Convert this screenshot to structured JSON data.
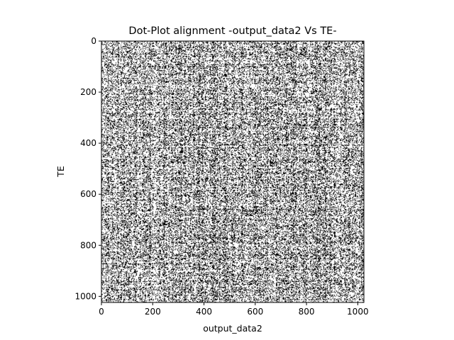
{
  "chart_data": {
    "type": "heatmap",
    "title": "Dot-Plot alignment -output_data2 Vs TE-",
    "xlabel": "output_data2",
    "ylabel": "TE",
    "xlim": [
      0,
      1024
    ],
    "ylim": [
      1024,
      0
    ],
    "x_ticks": [
      0,
      200,
      400,
      600,
      800,
      1000
    ],
    "y_ticks": [
      0,
      200,
      400,
      600,
      800,
      1000
    ],
    "x_tick_labels": [
      "0",
      "200",
      "400",
      "600",
      "800",
      "1000"
    ],
    "y_tick_labels": [
      "0",
      "200",
      "400",
      "600",
      "800",
      "1000"
    ],
    "matrix_size": [
      1024,
      1024
    ],
    "match_density": 0.35,
    "colors": {
      "match": "#000000",
      "background": "#ffffff"
    },
    "grid": false,
    "legend": "none"
  }
}
